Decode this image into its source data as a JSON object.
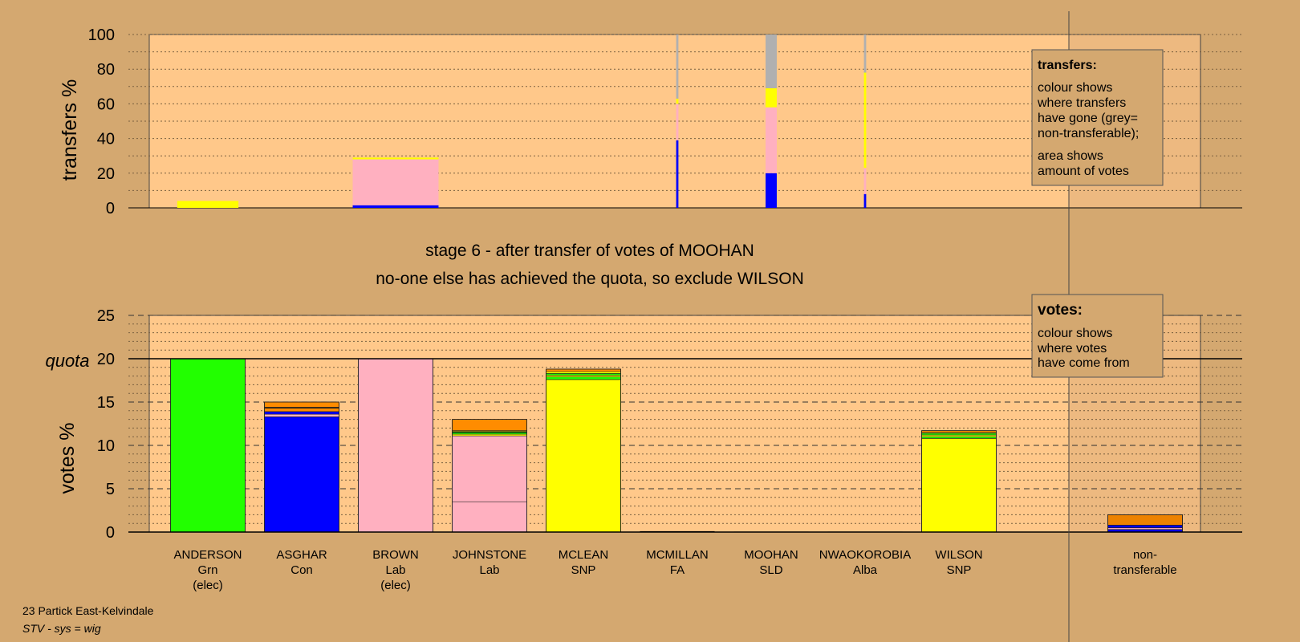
{
  "colors": {
    "background": "#d4a870",
    "plot_bg": "#ffc88a",
    "green": "#22ff00",
    "blue": "#0000ff",
    "pink": "#ffb0c0",
    "yellow": "#ffff00",
    "orange": "#ff8c00",
    "grey": "#b0b0b0",
    "black": "#000000"
  },
  "top_chart": {
    "ylabel": "transfers %",
    "ylim": [
      0,
      100
    ],
    "yticks": [
      "0",
      "20",
      "40",
      "60",
      "80",
      "100"
    ]
  },
  "headline": {
    "line1": "stage 6 - after transfer of votes of MOOHAN",
    "line2": "no-one else has achieved the quota, so exclude WILSON"
  },
  "bottom_chart": {
    "ylabel": "votes %",
    "quota_label": "quota",
    "quota": 20,
    "ylim": [
      0,
      25
    ],
    "yticks": [
      "0",
      "5",
      "10",
      "15",
      "20",
      "25"
    ]
  },
  "legend_transfers": {
    "title": "transfers:",
    "para1": [
      "colour shows",
      "where transfers",
      "have gone (grey=",
      "non-transferable);"
    ],
    "para2": [
      "area shows",
      "amount of votes"
    ]
  },
  "legend_votes": {
    "title": "votes:",
    "para1": [
      "colour shows",
      "where votes",
      "have come from"
    ]
  },
  "footer": {
    "ward": "23 Partick East-Kelvindale",
    "system": "STV - sys = wig"
  },
  "chart_data": [
    {
      "type": "bar",
      "name": "transfers",
      "ylabel": "transfers %",
      "ylim": [
        0,
        100
      ],
      "categories": [
        "ANDERSON",
        "ASGHAR",
        "BROWN",
        "JOHNSTONE",
        "MCLEAN",
        "MCMILLAN",
        "MOOHAN",
        "NWAOKOROBIA",
        "WILSON"
      ],
      "bars": [
        {
          "candidate": "ANDERSON",
          "width_share": 0.82,
          "segments": [
            {
              "color": "yellow",
              "value": 4
            }
          ]
        },
        {
          "candidate": "BROWN",
          "width_share": 1.15,
          "segments": [
            {
              "color": "blue",
              "value": 1.5
            },
            {
              "color": "pink",
              "value": 26.5
            },
            {
              "color": "yellow",
              "value": 1
            }
          ]
        },
        {
          "candidate": "MCMILLAN",
          "width_share": 0.03,
          "segments": [
            {
              "color": "blue",
              "value": 39
            },
            {
              "color": "pink",
              "value": 21
            },
            {
              "color": "yellow",
              "value": 3
            },
            {
              "color": "grey",
              "value": 37
            }
          ]
        },
        {
          "candidate": "MOOHAN",
          "width_share": 0.15,
          "segments": [
            {
              "color": "blue",
              "value": 20
            },
            {
              "color": "pink",
              "value": 38
            },
            {
              "color": "yellow",
              "value": 11
            },
            {
              "color": "grey",
              "value": 31
            }
          ]
        },
        {
          "candidate": "NWAOKOROBIA",
          "width_share": 0.03,
          "segments": [
            {
              "color": "blue",
              "value": 8
            },
            {
              "color": "pink",
              "value": 15
            },
            {
              "color": "yellow",
              "value": 55
            },
            {
              "color": "grey",
              "value": 22
            }
          ]
        }
      ]
    },
    {
      "type": "bar",
      "name": "votes",
      "ylabel": "votes %",
      "ylim": [
        0,
        25
      ],
      "quota": 20,
      "categories": [
        {
          "name": "ANDERSON",
          "party": "Grn",
          "note": "(elec)"
        },
        {
          "name": "ASGHAR",
          "party": "Con",
          "note": ""
        },
        {
          "name": "BROWN",
          "party": "Lab",
          "note": "(elec)"
        },
        {
          "name": "JOHNSTONE",
          "party": "Lab",
          "note": ""
        },
        {
          "name": "MCLEAN",
          "party": "SNP",
          "note": ""
        },
        {
          "name": "MCMILLAN",
          "party": "FA",
          "note": ""
        },
        {
          "name": "MOOHAN",
          "party": "SLD",
          "note": ""
        },
        {
          "name": "NWAOKOROBIA",
          "party": "Alba",
          "note": ""
        },
        {
          "name": "WILSON",
          "party": "SNP",
          "note": ""
        }
      ],
      "nontransferable_label": [
        "non-",
        "transferable"
      ],
      "bars": [
        {
          "candidate": "ANDERSON",
          "segments": [
            {
              "color": "green",
              "value": 20
            }
          ]
        },
        {
          "candidate": "ASGHAR",
          "segments": [
            {
              "color": "blue",
              "value": 13.3
            },
            {
              "color": "pink",
              "value": 0.3
            },
            {
              "color": "blue",
              "value": 0.3
            },
            {
              "color": "orange",
              "value": 0.4
            },
            {
              "color": "black",
              "value": 0.1
            },
            {
              "color": "orange",
              "value": 0.6
            }
          ]
        },
        {
          "candidate": "BROWN",
          "segments": [
            {
              "color": "pink",
              "value": 20
            }
          ]
        },
        {
          "candidate": "JOHNSTONE",
          "segments": [
            {
              "color": "pink",
              "value": 3.5
            },
            {
              "color": "pink",
              "value": 7.6
            },
            {
              "color": "yellow",
              "value": 0.2
            },
            {
              "color": "green",
              "value": 0.2
            },
            {
              "color": "black",
              "value": 0.1
            },
            {
              "color": "yellow",
              "value": 0.1
            },
            {
              "color": "orange",
              "value": 1.3
            }
          ]
        },
        {
          "candidate": "MCLEAN",
          "segments": [
            {
              "color": "yellow",
              "value": 17.6
            },
            {
              "color": "green",
              "value": 0.3
            },
            {
              "color": "yellow",
              "value": 0.2
            },
            {
              "color": "green",
              "value": 0.2
            },
            {
              "color": "yellow",
              "value": 0.2
            },
            {
              "color": "orange",
              "value": 0.3
            }
          ]
        },
        {
          "candidate": "MCMILLAN",
          "segments": [
            {
              "color": "black",
              "value": 0.1
            }
          ]
        },
        {
          "candidate": "MOOHAN",
          "segments": [
            {
              "color": "black",
              "value": 0.05
            }
          ]
        },
        {
          "candidate": "NWAOKOROBIA",
          "segments": [
            {
              "color": "black",
              "value": 0.05
            }
          ]
        },
        {
          "candidate": "WILSON",
          "segments": [
            {
              "color": "yellow",
              "value": 10.8
            },
            {
              "color": "green",
              "value": 0.2
            },
            {
              "color": "yellow",
              "value": 0.2
            },
            {
              "color": "green",
              "value": 0.2
            },
            {
              "color": "yellow",
              "value": 0.1
            },
            {
              "color": "orange",
              "value": 0.2
            }
          ]
        },
        {
          "candidate": "non-transferable",
          "segments": [
            {
              "color": "blue",
              "value": 0.3
            },
            {
              "color": "pink",
              "value": 0.2
            },
            {
              "color": "blue",
              "value": 0.3
            },
            {
              "color": "orange",
              "value": 1.2
            }
          ]
        }
      ]
    }
  ]
}
